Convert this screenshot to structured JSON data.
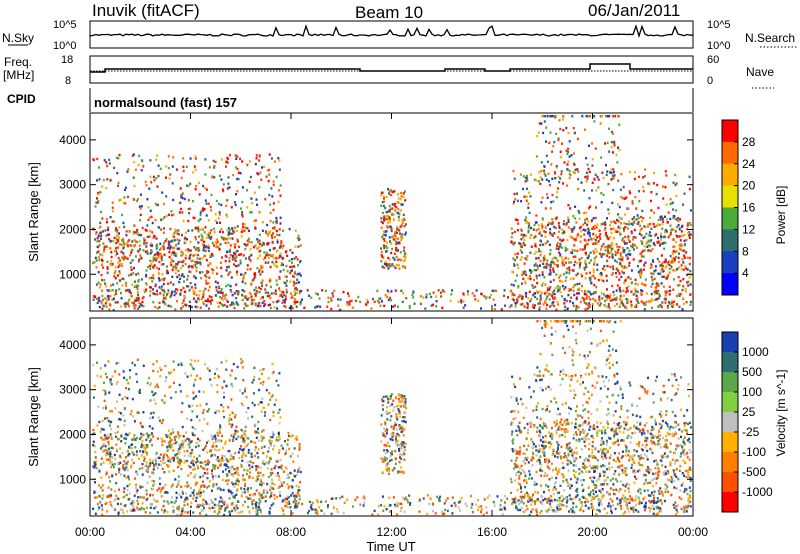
{
  "header": {
    "station": "Inuvik (fitACF)",
    "beam": "Beam 10",
    "date": "06/Jan/2011"
  },
  "top_panels": {
    "nsky_label": "N.Sky",
    "nsky_ticks": [
      "10^5",
      "10^0"
    ],
    "nsearch_label": "N.Search",
    "nsearch_ticks": [
      "10^5",
      "10^0"
    ],
    "freq_label": "Freq.",
    "freq_unit": "[MHz]",
    "freq_ticks": [
      "18",
      "8"
    ],
    "nave_label": "Nave",
    "nave_ticks": [
      "60",
      "0"
    ],
    "cpid_label": "CPID",
    "cpid_text": "normalsound (fast) 157"
  },
  "chart_data": [
    {
      "type": "heatmap",
      "name": "power",
      "ylabel": "Slant Range [km]",
      "ylim": [
        180,
        4600
      ],
      "y_ticks": [
        "1000",
        "2000",
        "3000",
        "4000"
      ],
      "colorbar_label": "Power [dB]",
      "colorbar_ticks": [
        "28",
        "24",
        "20",
        "16",
        "12",
        "8",
        "4"
      ],
      "colorbar_colors": [
        "#ff0000",
        "#ff6a00",
        "#ffaa00",
        "#e8e000",
        "#4caa3a",
        "#2e6e6e",
        "#1a40c0",
        "#0000ff"
      ]
    },
    {
      "type": "heatmap",
      "name": "velocity",
      "ylabel": "Slant Range [km]",
      "ylim": [
        180,
        4600
      ],
      "y_ticks": [
        "1000",
        "2000",
        "3000",
        "4000"
      ],
      "colorbar_label": "Velocity [m s^-1]",
      "colorbar_ticks": [
        "1000",
        "500",
        "100",
        "25",
        "-25",
        "-100",
        "-500",
        "-1000"
      ],
      "colorbar_colors": [
        "#1a3fb0",
        "#2e6e6e",
        "#5aa84a",
        "#80d040",
        "#c0c0c0",
        "#ffb000",
        "#ff8000",
        "#ff5000",
        "#ff0000"
      ]
    }
  ],
  "time_axis": {
    "xlabel": "Time UT",
    "ticks": [
      "00:00",
      "04:00",
      "08:00",
      "12:00",
      "16:00",
      "20:00",
      "00:00"
    ]
  }
}
